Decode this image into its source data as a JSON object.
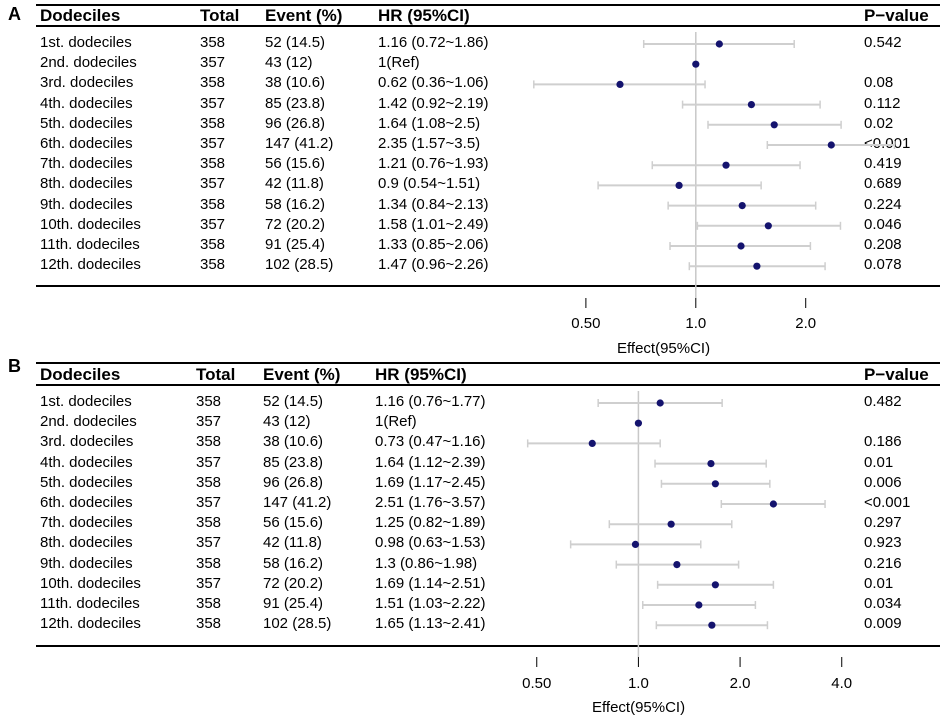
{
  "columns": {
    "dodeciles": "Dodeciles",
    "total": "Total",
    "event": "Event (%)",
    "hr": "HR (95%CI)",
    "pvalue": "P−value"
  },
  "colors": {
    "point": "#14136e",
    "ci": "#cfcfcf",
    "ref_line": "#c8c8c8",
    "rule": "#000000"
  },
  "chart_data": [
    {
      "type": "forest",
      "panel_label": "A",
      "xlabel": "Effect(95%CI)",
      "x_scale": "log",
      "xlim": [
        0.33,
        3.0
      ],
      "ticks": [
        0.5,
        1.0,
        2.0
      ],
      "tick_labels": [
        "0.50",
        "1.0",
        "2.0"
      ],
      "reference": 1.0,
      "rows": [
        {
          "label": "1st.  dodeciles",
          "total": "358",
          "event": "52 (14.5)",
          "hr_text": "1.16 (0.72~1.86)",
          "p": "0.542",
          "hr": 1.16,
          "lo": 0.72,
          "hi": 1.86
        },
        {
          "label": "2nd. dodeciles",
          "total": "357",
          "event": "43 (12)",
          "hr_text": "1(Ref)",
          "p": "",
          "hr": 1.0,
          "lo": null,
          "hi": null
        },
        {
          "label": "3rd.  dodeciles",
          "total": "358",
          "event": "38 (10.6)",
          "hr_text": "0.62 (0.36~1.06)",
          "p": "0.08",
          "hr": 0.62,
          "lo": 0.36,
          "hi": 1.06
        },
        {
          "label": "4th.  dodeciles",
          "total": "357",
          "event": "85 (23.8)",
          "hr_text": "1.42 (0.92~2.19)",
          "p": "0.112",
          "hr": 1.42,
          "lo": 0.92,
          "hi": 2.19
        },
        {
          "label": "5th.  dodeciles",
          "total": "358",
          "event": "96 (26.8)",
          "hr_text": "1.64 (1.08~2.5)",
          "p": "0.02",
          "hr": 1.64,
          "lo": 1.08,
          "hi": 2.5
        },
        {
          "label": "6th.  dodeciles",
          "total": "357",
          "event": "147 (41.2)",
          "hr_text": "2.35 (1.57~3.5)",
          "p": "<0.001",
          "hr": 2.35,
          "lo": 1.57,
          "hi": 3.5
        },
        {
          "label": "7th.  dodeciles",
          "total": "358",
          "event": "56 (15.6)",
          "hr_text": "1.21 (0.76~1.93)",
          "p": "0.419",
          "hr": 1.21,
          "lo": 0.76,
          "hi": 1.93
        },
        {
          "label": "8th.  dodeciles",
          "total": "357",
          "event": "42 (11.8)",
          "hr_text": "0.9 (0.54~1.51)",
          "p": "0.689",
          "hr": 0.9,
          "lo": 0.54,
          "hi": 1.51
        },
        {
          "label": "9th.  dodeciles",
          "total": "358",
          "event": "58 (16.2)",
          "hr_text": "1.34 (0.84~2.13)",
          "p": "0.224",
          "hr": 1.34,
          "lo": 0.84,
          "hi": 2.13
        },
        {
          "label": "10th. dodeciles",
          "total": "357",
          "event": "72 (20.2)",
          "hr_text": "1.58 (1.01~2.49)",
          "p": "0.046",
          "hr": 1.58,
          "lo": 1.01,
          "hi": 2.49
        },
        {
          "label": "11th. dodeciles",
          "total": "358",
          "event": "91 (25.4)",
          "hr_text": "1.33 (0.85~2.06)",
          "p": "0.208",
          "hr": 1.33,
          "lo": 0.85,
          "hi": 2.06
        },
        {
          "label": "12th. dodeciles",
          "total": "358",
          "event": "102 (28.5)",
          "hr_text": "1.47 (0.96~2.26)",
          "p": "0.078",
          "hr": 1.47,
          "lo": 0.96,
          "hi": 2.26
        }
      ]
    },
    {
      "type": "forest",
      "panel_label": "B",
      "xlabel": "Effect(95%CI)",
      "x_scale": "log",
      "xlim": [
        0.44,
        4.85
      ],
      "ticks": [
        0.5,
        1.0,
        2.0,
        4.0
      ],
      "tick_labels": [
        "0.50",
        "1.0",
        "2.0",
        "4.0"
      ],
      "reference": 1.0,
      "rows": [
        {
          "label": "1st.  dodeciles",
          "total": "358",
          "event": "52 (14.5)",
          "hr_text": "1.16 (0.76~1.77)",
          "p": "0.482",
          "hr": 1.16,
          "lo": 0.76,
          "hi": 1.77
        },
        {
          "label": "2nd. dodeciles",
          "total": "357",
          "event": "43 (12)",
          "hr_text": "1(Ref)",
          "p": "",
          "hr": 1.0,
          "lo": null,
          "hi": null
        },
        {
          "label": "3rd.  dodeciles",
          "total": "358",
          "event": "38 (10.6)",
          "hr_text": "0.73 (0.47~1.16)",
          "p": "0.186",
          "hr": 0.73,
          "lo": 0.47,
          "hi": 1.16
        },
        {
          "label": "4th.  dodeciles",
          "total": "357",
          "event": "85 (23.8)",
          "hr_text": "1.64 (1.12~2.39)",
          "p": "0.01",
          "hr": 1.64,
          "lo": 1.12,
          "hi": 2.39
        },
        {
          "label": "5th.  dodeciles",
          "total": "358",
          "event": "96 (26.8)",
          "hr_text": "1.69 (1.17~2.45)",
          "p": "0.006",
          "hr": 1.69,
          "lo": 1.17,
          "hi": 2.45
        },
        {
          "label": "6th.  dodeciles",
          "total": "357",
          "event": "147 (41.2)",
          "hr_text": "2.51 (1.76~3.57)",
          "p": "<0.001",
          "hr": 2.51,
          "lo": 1.76,
          "hi": 3.57
        },
        {
          "label": "7th.  dodeciles",
          "total": "358",
          "event": "56 (15.6)",
          "hr_text": "1.25 (0.82~1.89)",
          "p": "0.297",
          "hr": 1.25,
          "lo": 0.82,
          "hi": 1.89
        },
        {
          "label": "8th.  dodeciles",
          "total": "357",
          "event": "42 (11.8)",
          "hr_text": "0.98 (0.63~1.53)",
          "p": "0.923",
          "hr": 0.98,
          "lo": 0.63,
          "hi": 1.53
        },
        {
          "label": "9th.  dodeciles",
          "total": "358",
          "event": "58 (16.2)",
          "hr_text": "1.3 (0.86~1.98)",
          "p": "0.216",
          "hr": 1.3,
          "lo": 0.86,
          "hi": 1.98
        },
        {
          "label": "10th. dodeciles",
          "total": "357",
          "event": "72 (20.2)",
          "hr_text": "1.69 (1.14~2.51)",
          "p": "0.01",
          "hr": 1.69,
          "lo": 1.14,
          "hi": 2.51
        },
        {
          "label": "11th. dodeciles",
          "total": "358",
          "event": "91 (25.4)",
          "hr_text": "1.51 (1.03~2.22)",
          "p": "0.034",
          "hr": 1.51,
          "lo": 1.03,
          "hi": 2.22
        },
        {
          "label": "12th. dodeciles",
          "total": "358",
          "event": "102 (28.5)",
          "hr_text": "1.65 (1.13~2.41)",
          "p": "0.009",
          "hr": 1.65,
          "lo": 1.13,
          "hi": 2.41
        }
      ]
    }
  ]
}
